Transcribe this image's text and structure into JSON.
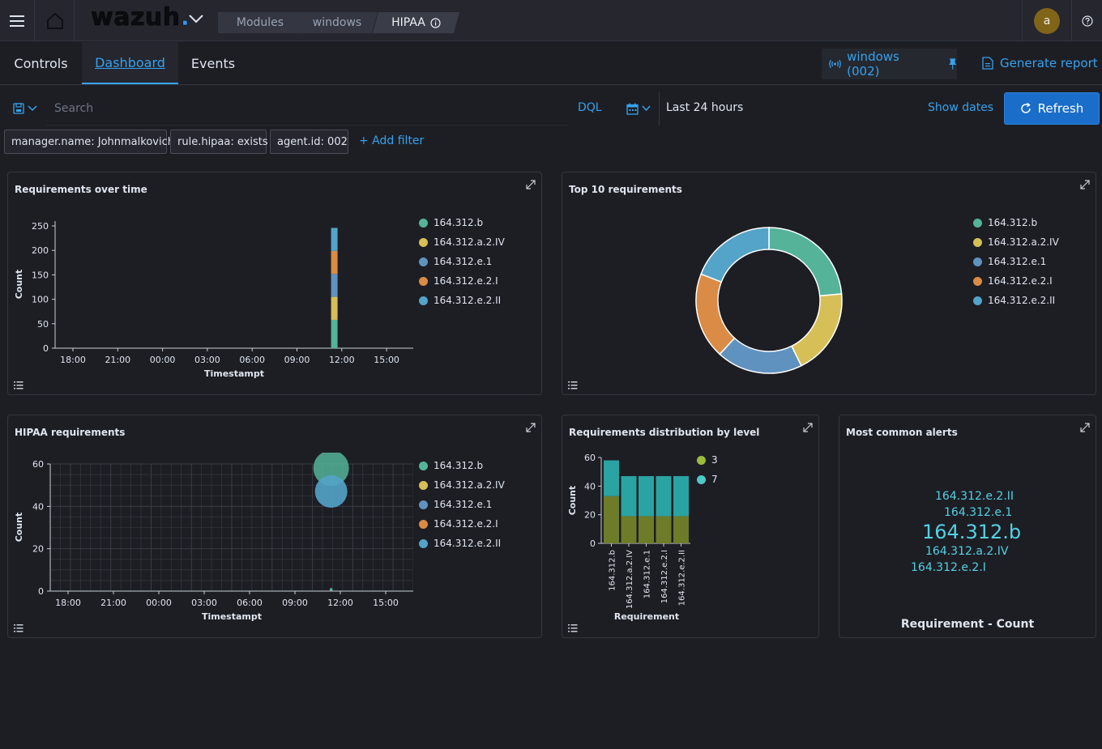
{
  "header": {
    "logo_text": "wazuh",
    "logo_dot": ".",
    "breadcrumbs": [
      "Modules",
      "windows",
      "HIPAA"
    ],
    "avatar_letter": "a"
  },
  "tabs": {
    "items": [
      "Controls",
      "Dashboard",
      "Events"
    ],
    "active": "Dashboard",
    "agent_label": "windows (002)",
    "generate_report": "Generate report"
  },
  "query": {
    "placeholder": "Search",
    "language": "DQL",
    "time_range": "Last 24 hours",
    "show_dates": "Show dates",
    "refresh": "Refresh"
  },
  "filters": {
    "items": [
      "manager.name: Johnmalkovich",
      "rule.hipaa: exists",
      "agent.id: 002"
    ],
    "add_label": "+ Add filter"
  },
  "colors": {
    "s1": "#54b399",
    "s2": "#d6bf57",
    "s3": "#6092c0",
    "s4": "#da8b45",
    "s5": "#54a3c8",
    "level3": "#6e7c2a",
    "level7": "#2aa3a3",
    "accent": "#36a2ef"
  },
  "panels": {
    "req_over_time": {
      "title": "Requirements over time"
    },
    "top10": {
      "title": "Top 10 requirements"
    },
    "hipaa_req": {
      "title": "HIPAA requirements"
    },
    "dist_level": {
      "title": "Requirements distribution by level"
    },
    "common_alerts": {
      "title": "Most common alerts",
      "footer": "Requirement - Count"
    }
  },
  "chart_data": [
    {
      "type": "bar",
      "title": "Requirements over time",
      "xlabel": "Timestampt",
      "ylabel": "Count",
      "ylim": [
        0,
        260
      ],
      "x_ticks": [
        "18:00",
        "21:00",
        "00:00",
        "03:00",
        "06:00",
        "09:00",
        "12:00",
        "15:00"
      ],
      "y_ticks": [
        0,
        50,
        100,
        150,
        200,
        250
      ],
      "stack_at": "11:30",
      "series": [
        {
          "name": "164.312.b",
          "values": [
            58
          ]
        },
        {
          "name": "164.312.a.2.IV",
          "values": [
            47
          ]
        },
        {
          "name": "164.312.e.1",
          "values": [
            47
          ]
        },
        {
          "name": "164.312.e.2.I",
          "values": [
            47
          ]
        },
        {
          "name": "164.312.e.2.II",
          "values": [
            47
          ]
        }
      ],
      "legend": "right"
    },
    {
      "type": "pie",
      "title": "Top 10 requirements",
      "donut": true,
      "categories": [
        "164.312.b",
        "164.312.a.2.IV",
        "164.312.e.1",
        "164.312.e.2.I",
        "164.312.e.2.II"
      ],
      "values": [
        58,
        47,
        47,
        47,
        47
      ],
      "legend": "right"
    },
    {
      "type": "scatter",
      "title": "HIPAA requirements",
      "xlabel": "Timestampt",
      "ylabel": "Count",
      "ylim": [
        0,
        60
      ],
      "x_ticks": [
        "18:00",
        "21:00",
        "00:00",
        "03:00",
        "06:00",
        "09:00",
        "12:00",
        "15:00"
      ],
      "y_ticks": [
        0,
        20,
        40,
        60
      ],
      "series": [
        {
          "name": "164.312.b",
          "x": [
            "11:30"
          ],
          "values": [
            58
          ]
        },
        {
          "name": "164.312.e.2.II",
          "x": [
            "11:30"
          ],
          "values": [
            47
          ]
        }
      ],
      "legend": "right"
    },
    {
      "type": "bar",
      "title": "Requirements distribution by level",
      "xlabel": "Requirement",
      "ylabel": "Count",
      "ylim": [
        0,
        60
      ],
      "y_ticks": [
        0,
        20,
        40,
        60
      ],
      "categories": [
        "164.312.b",
        "164.312.a.2.IV",
        "164.312.e.1",
        "164.312.e.2.I",
        "164.312.e.2.II"
      ],
      "series": [
        {
          "name": "3",
          "values": [
            33,
            19,
            19,
            19,
            19
          ]
        },
        {
          "name": "7",
          "values": [
            25,
            28,
            28,
            28,
            28
          ]
        }
      ],
      "legend": "right"
    },
    {
      "type": "table",
      "title": "Most common alerts",
      "words": [
        "164.312.e.2.II",
        "164.312.e.1",
        "164.312.b",
        "164.312.a.2.IV",
        "164.312.e.2.I"
      ]
    }
  ]
}
